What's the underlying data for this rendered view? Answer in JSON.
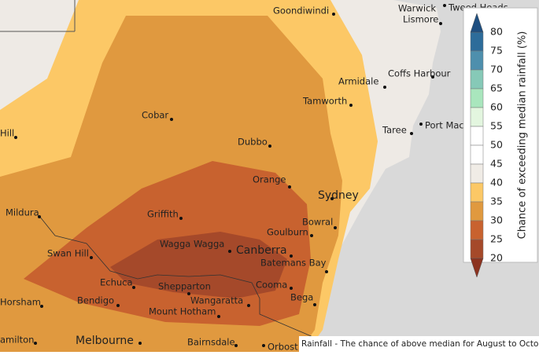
{
  "map": {
    "places": [
      {
        "name": "Goondiwindi"
      },
      {
        "name": "Warwick"
      },
      {
        "name": "Tweed Heads"
      },
      {
        "name": "Lismore"
      },
      {
        "name": "Coffs Harbour"
      },
      {
        "name": "Armidale"
      },
      {
        "name": "Tamworth"
      },
      {
        "name": "Port Mac"
      },
      {
        "name": "Taree"
      },
      {
        "name": "Cobar"
      },
      {
        "name": "Dubbo"
      },
      {
        "name": "Hill"
      },
      {
        "name": "Orange"
      },
      {
        "name": "Sydney"
      },
      {
        "name": "Mildura"
      },
      {
        "name": "Griffith"
      },
      {
        "name": "Bowral"
      },
      {
        "name": "Goulburn"
      },
      {
        "name": "Swan Hill"
      },
      {
        "name": "Wagga Wagga"
      },
      {
        "name": "Canberra"
      },
      {
        "name": "Batemans Bay"
      },
      {
        "name": "Echuca"
      },
      {
        "name": "Shepparton"
      },
      {
        "name": "Cooma"
      },
      {
        "name": "Bega"
      },
      {
        "name": "Horsham"
      },
      {
        "name": "Bendigo"
      },
      {
        "name": "Wangaratta"
      },
      {
        "name": "Mount Hotham"
      },
      {
        "name": "Bairnsdale"
      },
      {
        "name": "Melbourne"
      },
      {
        "name": "amilton"
      },
      {
        "name": "Orbost"
      }
    ],
    "caption": "Rainfall - The chance of above median for August to October",
    "legend": {
      "title": "Chance of exceeding median rainfall (%)",
      "ticks": [
        80,
        75,
        70,
        65,
        60,
        55,
        50,
        45,
        40,
        35,
        30,
        25,
        20
      ]
    }
  }
}
